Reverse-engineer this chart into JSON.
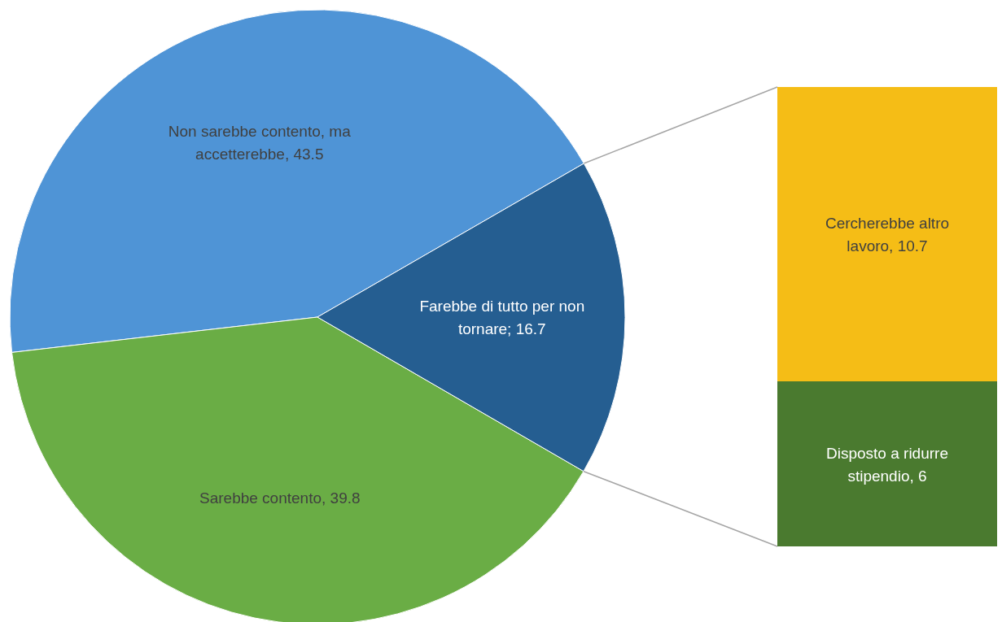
{
  "chart_data": [
    {
      "type": "pie",
      "categories": [
        "Non sarebbe contento, ma accetterebbe",
        "Sarebbe contento",
        "Farebbe di tutto per non tornare"
      ],
      "values": [
        43.5,
        39.8,
        16.7
      ],
      "colors": [
        "#4f94d6",
        "#6aad45",
        "#255e91"
      ],
      "value_labels": [
        ", 43.5",
        ", 39.8",
        "; 16.7"
      ]
    },
    {
      "type": "bar",
      "stacked": true,
      "categories": [
        null
      ],
      "series": [
        {
          "name": "Disposto a ridurre stipendio",
          "color": "#4a7a2f",
          "values": [
            6
          ],
          "value_labels": [
            ", 6"
          ]
        },
        {
          "name": "Cercherebbe altro lavoro",
          "color": "#f5bd16",
          "values": [
            10.7
          ],
          "value_labels": [
            ", 10.7"
          ]
        }
      ]
    }
  ]
}
